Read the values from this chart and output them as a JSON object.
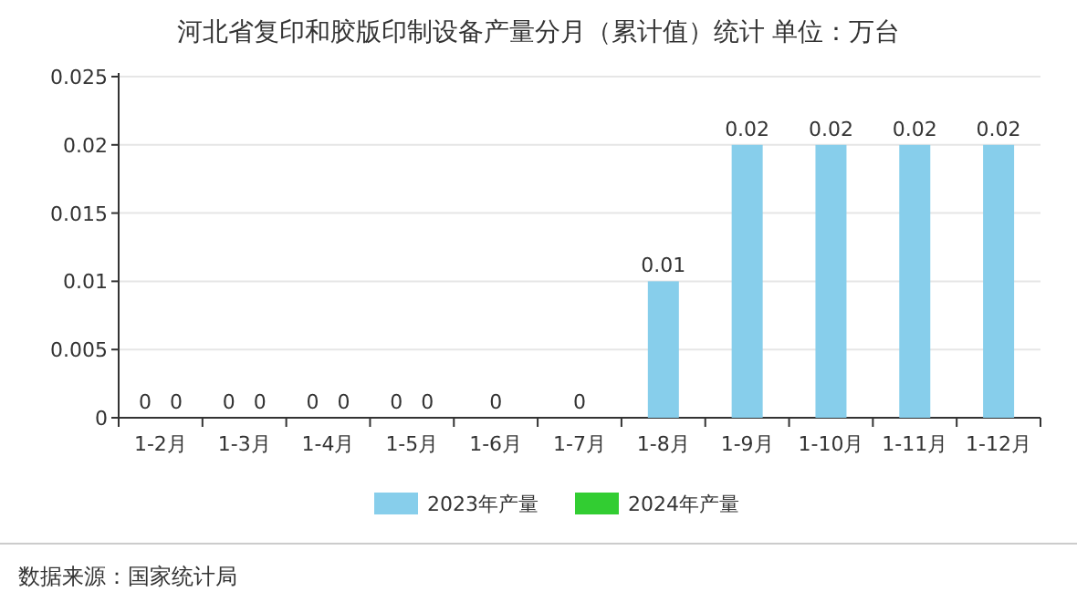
{
  "chart_data": {
    "type": "bar",
    "title": "河北省复印和胶版印制设备产量分月（累计值）统计 单位：万台",
    "categories": [
      "1-2月",
      "1-3月",
      "1-4月",
      "1-5月",
      "1-6月",
      "1-7月",
      "1-8月",
      "1-9月",
      "1-10月",
      "1-11月",
      "1-12月"
    ],
    "series": [
      {
        "name": "2023年产量",
        "color": "#87ceeb",
        "values": [
          0,
          0,
          0,
          0,
          null,
          null,
          0.01,
          0.02,
          0.02,
          0.02,
          0.02
        ]
      },
      {
        "name": "2024年产量",
        "color": "#32cd32",
        "values": [
          0,
          0,
          0,
          0,
          0,
          0,
          null,
          null,
          null,
          null,
          null
        ]
      }
    ],
    "ylim": [
      0,
      0.025
    ],
    "yticks": [
      0,
      0.005,
      0.01,
      0.015,
      0.02,
      0.025
    ],
    "grid": "y",
    "legend": "bottom",
    "data_labels": true,
    "annotations": [
      "数据来源：国家统计局"
    ]
  }
}
